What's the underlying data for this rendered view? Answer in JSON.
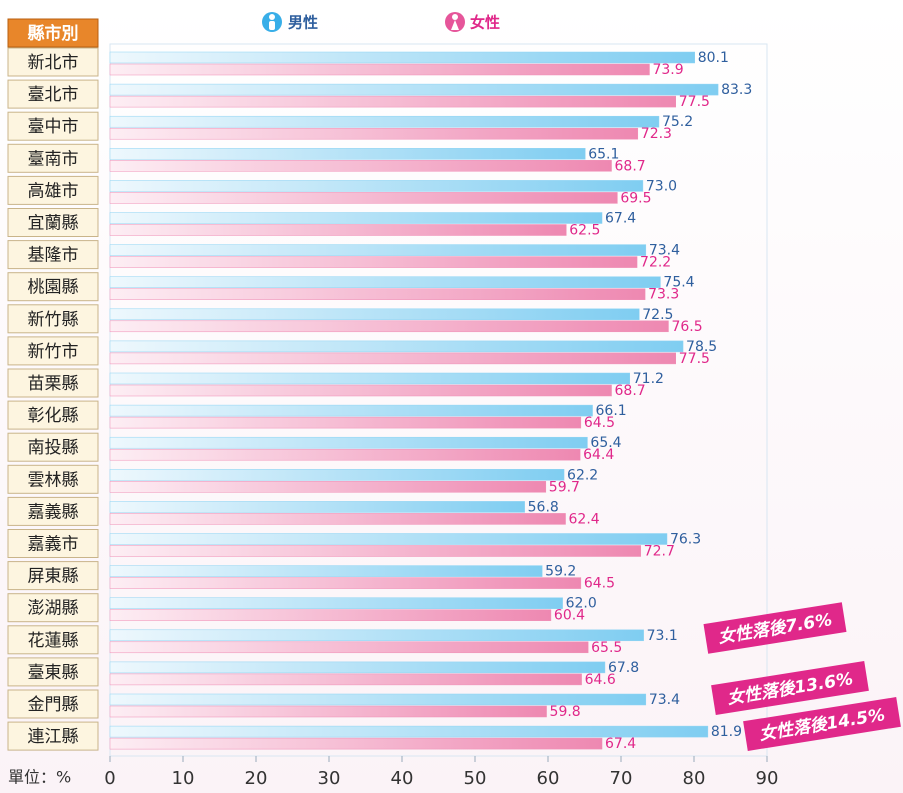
{
  "chart_data": {
    "type": "bar",
    "orientation": "horizontal",
    "category_header": "縣市別",
    "unit_label": "單位：%",
    "categories": [
      "新北市",
      "臺北市",
      "臺中市",
      "臺南市",
      "高雄市",
      "宜蘭縣",
      "基隆市",
      "桃園縣",
      "新竹縣",
      "新竹市",
      "苗栗縣",
      "彰化縣",
      "南投縣",
      "雲林縣",
      "嘉義縣",
      "嘉義市",
      "屏東縣",
      "澎湖縣",
      "花蓮縣",
      "臺東縣",
      "金門縣",
      "連江縣"
    ],
    "series": [
      {
        "name": "男性",
        "color": "#8dd3f3",
        "label_color": "#2f5f9e",
        "values": [
          80.1,
          83.3,
          75.2,
          65.1,
          73.0,
          67.4,
          73.4,
          75.4,
          72.5,
          78.5,
          71.2,
          66.1,
          65.4,
          62.2,
          56.8,
          76.3,
          59.2,
          62.0,
          73.1,
          67.8,
          73.4,
          81.9
        ],
        "value_labels": [
          "80.1",
          "83.3",
          "75.2",
          "65.1",
          "73.0",
          "67.4",
          "73.4",
          "75.4",
          "72.5",
          "78.5",
          "71.2",
          "66.1",
          "65.4",
          "62.2",
          "56.8",
          "76.3",
          "59.2",
          "62.0",
          "73.1",
          "67.8",
          "73.4",
          "81.9"
        ]
      },
      {
        "name": "女性",
        "color": "#f08db5",
        "label_color": "#e0288a",
        "values": [
          73.9,
          77.5,
          72.3,
          68.7,
          69.5,
          62.5,
          72.2,
          73.3,
          76.5,
          77.5,
          68.7,
          64.5,
          64.4,
          59.7,
          62.4,
          72.7,
          64.5,
          60.4,
          65.5,
          64.6,
          59.8,
          67.4
        ],
        "value_labels": [
          "73.9",
          "77.5",
          "72.3",
          "68.7",
          "69.5",
          "62.5",
          "72.2",
          "73.3",
          "76.5",
          "77.5",
          "68.7",
          "64.5",
          "64.4",
          "59.7",
          "62.4",
          "72.7",
          "64.5",
          "60.4",
          "65.5",
          "64.6",
          "59.8",
          "67.4"
        ]
      }
    ],
    "xlim": [
      0,
      90
    ],
    "xticks": [
      0,
      10,
      20,
      30,
      40,
      50,
      60,
      70,
      80,
      90
    ],
    "annotations": [
      "女性落後7.6%",
      "女性落後13.6%",
      "女性落後14.5%"
    ]
  }
}
